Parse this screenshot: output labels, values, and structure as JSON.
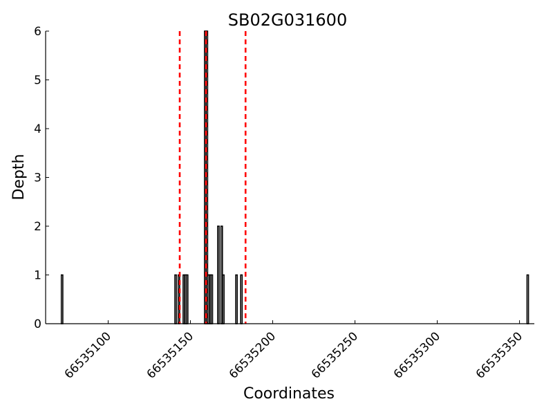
{
  "chart_data": {
    "type": "bar",
    "title": "SB02G031600",
    "xlabel": "Coordinates",
    "ylabel": "Depth",
    "xlim": [
      66535062,
      66535359
    ],
    "ylim": [
      0,
      6
    ],
    "x_ticks": [
      66535100,
      66535150,
      66535200,
      66535250,
      66535300,
      66535350
    ],
    "y_ticks": [
      0,
      1,
      2,
      3,
      4,
      5,
      6
    ],
    "grid": false,
    "bar_color": "#000000",
    "bars": [
      {
        "x": 66535072,
        "depth": 1
      },
      {
        "x": 66535141,
        "depth": 1
      },
      {
        "x": 66535143,
        "depth": 1
      },
      {
        "x": 66535146,
        "depth": 1
      },
      {
        "x": 66535147,
        "depth": 1
      },
      {
        "x": 66535148,
        "depth": 1
      },
      {
        "x": 66535159,
        "depth": 6
      },
      {
        "x": 66535160,
        "depth": 6
      },
      {
        "x": 66535161,
        "depth": 1
      },
      {
        "x": 66535162,
        "depth": 1
      },
      {
        "x": 66535163,
        "depth": 1
      },
      {
        "x": 66535167,
        "depth": 2
      },
      {
        "x": 66535169,
        "depth": 2
      },
      {
        "x": 66535170,
        "depth": 1
      },
      {
        "x": 66535178,
        "depth": 1
      },
      {
        "x": 66535181,
        "depth": 1
      },
      {
        "x": 66535355,
        "depth": 1
      }
    ],
    "vlines": [
      {
        "x": 66535143.5,
        "color": "#ff0000",
        "style": "dashed"
      },
      {
        "x": 66535159.5,
        "color": "#ff0000",
        "style": "dashed"
      },
      {
        "x": 66535183.5,
        "color": "#ff0000",
        "style": "dashed"
      }
    ]
  }
}
